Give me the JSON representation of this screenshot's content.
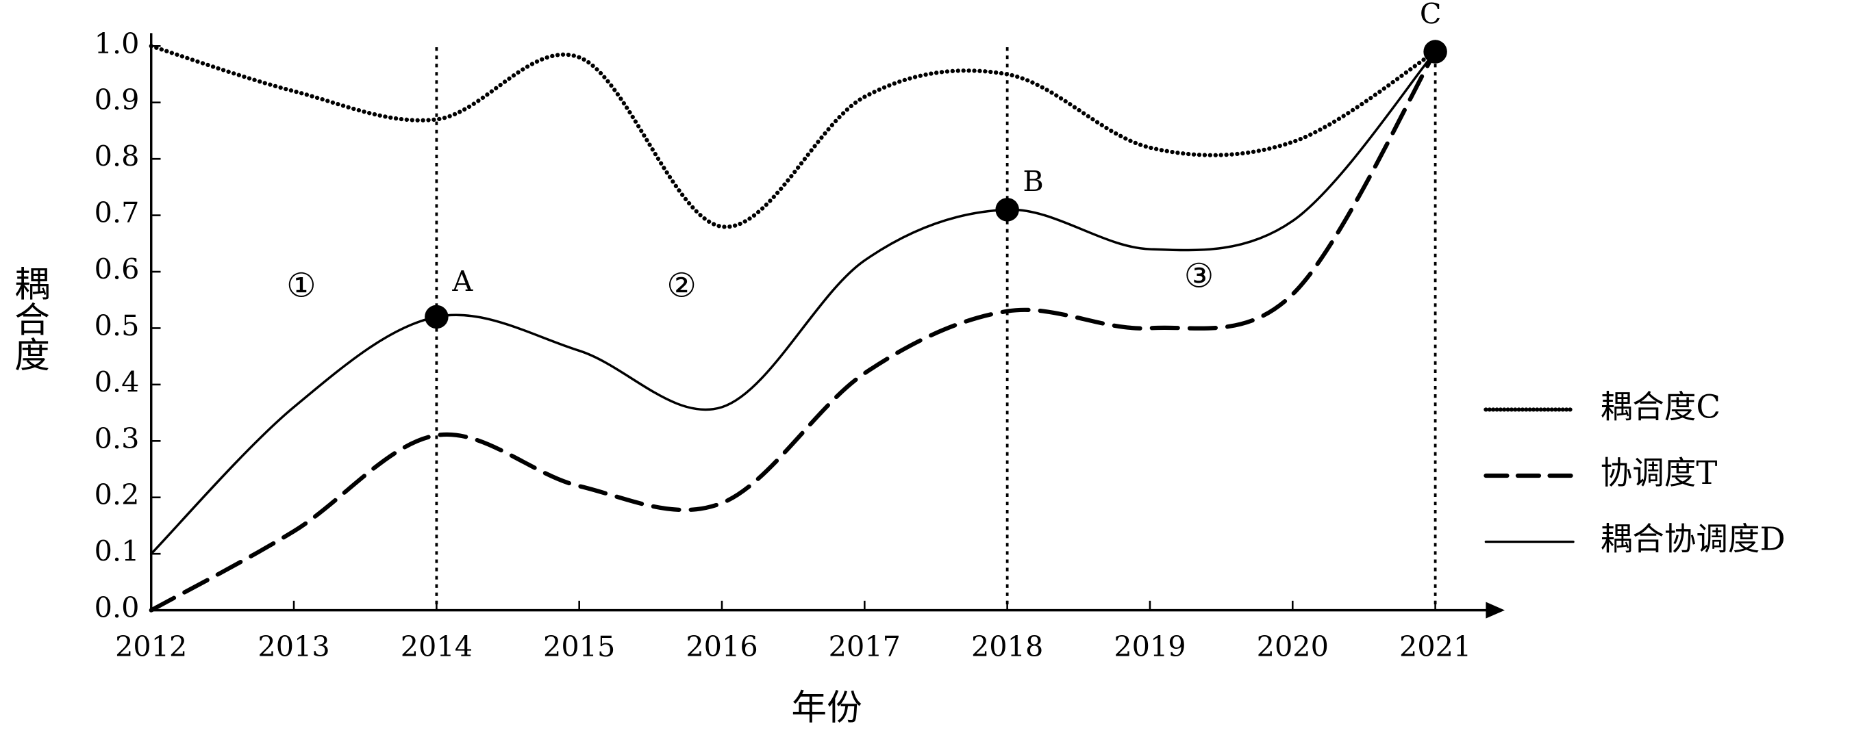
{
  "chart_data": {
    "type": "line",
    "x_label": "年份",
    "y_label": "耦合度",
    "x": [
      2012,
      2013,
      2014,
      2015,
      2016,
      2017,
      2018,
      2019,
      2020,
      2021
    ],
    "series": [
      {
        "name": "耦合度C",
        "color": "#000000",
        "style": "dotted",
        "values": [
          1.0,
          0.92,
          0.87,
          0.98,
          0.68,
          0.91,
          0.95,
          0.82,
          0.83,
          0.99
        ]
      },
      {
        "name": "协调度T",
        "color": "#000000",
        "style": "dashed",
        "values": [
          0.0,
          0.14,
          0.31,
          0.22,
          0.19,
          0.42,
          0.53,
          0.5,
          0.56,
          0.99
        ]
      },
      {
        "name": "耦合协调度D",
        "color": "#000000",
        "style": "solid",
        "values": [
          0.1,
          0.36,
          0.52,
          0.46,
          0.36,
          0.62,
          0.71,
          0.64,
          0.69,
          0.99
        ]
      }
    ],
    "xlim": [
      2012,
      2021.5
    ],
    "ylim": [
      0,
      1.0
    ],
    "xticks": [
      2012,
      2013,
      2014,
      2015,
      2016,
      2017,
      2018,
      2019,
      2020,
      2021
    ],
    "yticks": [
      {
        "value": 0,
        "label": "0.0"
      },
      0.1,
      0.2,
      0.3,
      0.4,
      0.5,
      0.6,
      0.7,
      0.8,
      0.9,
      {
        "value": 1,
        "label": "1.0"
      }
    ],
    "vlines": [
      2014,
      2018,
      2021
    ],
    "points": [
      {
        "label": "A",
        "x": 2014,
        "y": 0.52
      },
      {
        "label": "B",
        "x": 2018,
        "y": 0.71
      },
      {
        "label": "C",
        "x": 2021,
        "y": 0.99
      }
    ],
    "region_labels": [
      "①",
      "②",
      "③"
    ],
    "legend": "right"
  }
}
